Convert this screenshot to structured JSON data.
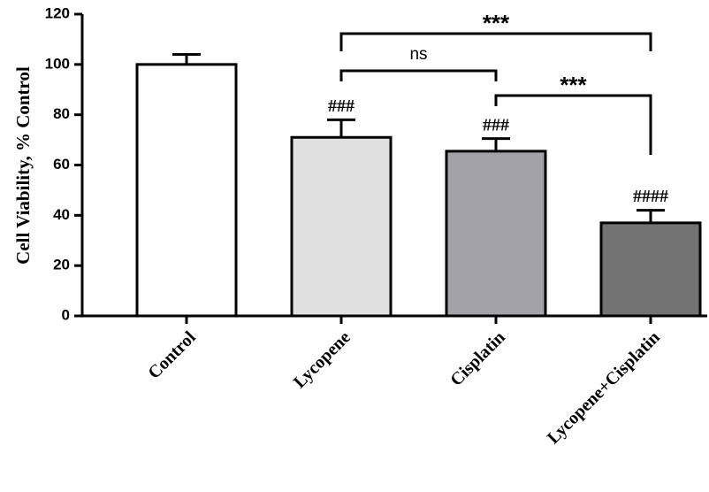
{
  "chart_data": {
    "type": "bar",
    "y_label": "Cell Viability, % Control",
    "categories": [
      "Control",
      "Lycopene",
      "Cisplatin",
      "Lycopene+Cisplatin"
    ],
    "values": [
      100,
      71,
      65.5,
      37
    ],
    "errors": [
      4,
      7,
      5,
      5
    ],
    "colors": [
      "#ffffff",
      "#e0e0e0",
      "#a2a2a7",
      "#737373"
    ],
    "markers": [
      null,
      "###",
      "###",
      "####"
    ],
    "annotations": [
      {
        "text": "***",
        "between": [
          "Lycopene",
          "Lycopene+Cisplatin"
        ]
      },
      {
        "text": "ns",
        "between": [
          "Lycopene",
          "Cisplatin"
        ]
      },
      {
        "text": "***",
        "between": [
          "Cisplatin",
          "Lycopene+Cisplatin"
        ]
      }
    ],
    "ylim": [
      0,
      120
    ],
    "yticks": [
      0,
      20,
      40,
      60,
      80,
      100,
      120
    ]
  }
}
